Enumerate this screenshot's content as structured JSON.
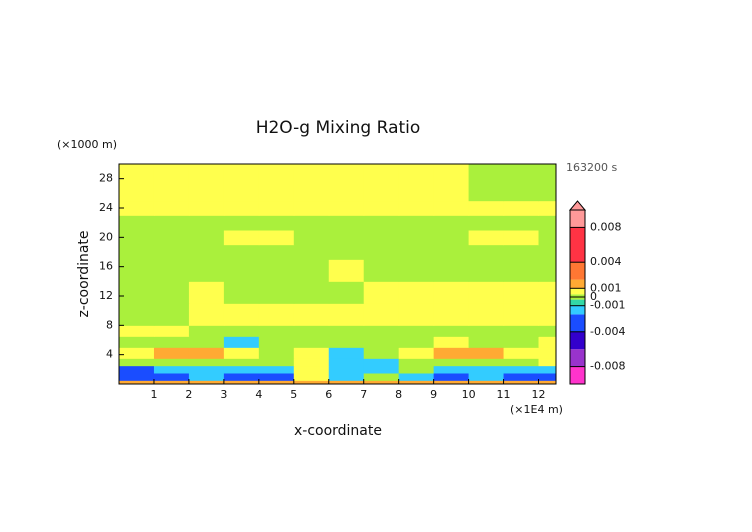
{
  "chart_data": {
    "type": "contour",
    "title": "H2O-g Mixing Ratio",
    "time_label": "163200 s",
    "xlabel": "x-coordinate",
    "ylabel": "z-coordinate",
    "x_unit": "(×1E4 m)",
    "y_unit": "(×1000 m)",
    "xlim": [
      0,
      12.5
    ],
    "ylim": [
      0,
      30
    ],
    "xticks": [
      1,
      2,
      3,
      4,
      5,
      6,
      7,
      8,
      9,
      10,
      11,
      12
    ],
    "yticks": [
      4,
      8,
      12,
      16,
      20,
      24,
      28
    ],
    "x_edges": [
      0,
      1,
      2,
      3,
      4,
      5,
      6,
      7,
      8,
      9,
      10,
      11,
      12,
      12.5
    ],
    "z_edges": [
      0,
      0.5,
      1.5,
      2.5,
      3.5,
      5,
      6.5,
      8,
      11,
      14,
      17,
      19,
      21,
      23,
      25,
      30
    ],
    "values": [
      [
        0.0015,
        0.0015,
        0.0015,
        0.0015,
        0.0015,
        0.0015,
        0.0015,
        0.0015,
        0.0015,
        0.0015,
        0.0015,
        0.0015,
        0.0015
      ],
      [
        -0.003,
        -0.003,
        -0.0015,
        -0.003,
        -0.003,
        0.0006,
        -0.0015,
        0,
        -0.0015,
        -0.003,
        -0.0015,
        -0.003,
        -0.003
      ],
      [
        -0.003,
        -0.0015,
        -0.0015,
        -0.0015,
        -0.0015,
        0.0006,
        -0.0015,
        -0.0015,
        0,
        -0.0015,
        -0.0015,
        -0.0015,
        -0.0015
      ],
      [
        0,
        0,
        0,
        0,
        0,
        0.0006,
        -0.0015,
        -0.0015,
        0,
        0,
        0,
        0,
        0.0006
      ],
      [
        0.0006,
        0.0015,
        0.0015,
        0.0006,
        0,
        0.0006,
        -0.0015,
        0,
        0.0006,
        0.0015,
        0.0015,
        0.0006,
        0.0006
      ],
      [
        0,
        0,
        0,
        -0.0015,
        0,
        0,
        0,
        0,
        0,
        0.0006,
        0,
        0,
        0.0006
      ],
      [
        0.0006,
        0.0006,
        0,
        0,
        0,
        0,
        0,
        0,
        0,
        0,
        0,
        0,
        0
      ],
      [
        0,
        0,
        0.0006,
        0.0006,
        0.0006,
        0.0006,
        0.0006,
        0.0006,
        0.0006,
        0.0006,
        0.0006,
        0.0006,
        0.0006
      ],
      [
        0,
        0,
        0.0006,
        0,
        0,
        0,
        0,
        0.0006,
        0.0006,
        0.0006,
        0.0006,
        0.0006,
        0.0006
      ],
      [
        0,
        0,
        0,
        0,
        0,
        0,
        0.0006,
        0,
        0,
        0,
        0,
        0,
        0
      ],
      [
        0,
        0,
        0,
        0,
        0,
        0,
        0,
        0,
        0,
        0,
        0,
        0,
        0
      ],
      [
        0,
        0,
        0,
        0.0006,
        0.0006,
        0,
        0,
        0,
        0,
        0,
        0.0006,
        0.0006,
        0
      ],
      [
        0,
        0,
        0,
        0,
        0,
        0,
        0,
        0,
        0,
        0,
        0,
        0,
        0
      ],
      [
        0.0006,
        0.0006,
        0.0006,
        0.0006,
        0.0006,
        0.0006,
        0.0006,
        0.0006,
        0.0006,
        0.0006,
        0.0006,
        0.0006,
        0.0006
      ],
      [
        0.0006,
        0.0006,
        0.0006,
        0.0006,
        0.0006,
        0.0006,
        0.0006,
        0.0006,
        0.0006,
        0.0006,
        0,
        0,
        0
      ]
    ],
    "clim": [
      -0.01,
      0.01
    ],
    "cticks": [
      0.008,
      0.004,
      0.001,
      0,
      -0.001,
      -0.004,
      -0.008
    ],
    "colormap": [
      {
        "value": -0.01,
        "color": "#ff33cc"
      },
      {
        "value": -0.008,
        "color": "#9933cc"
      },
      {
        "value": -0.006,
        "color": "#3300cc"
      },
      {
        "value": -0.004,
        "color": "#1a4dff"
      },
      {
        "value": -0.002,
        "color": "#33ccff"
      },
      {
        "value": -0.001,
        "color": "#33d9a6"
      },
      {
        "value": -0.0003,
        "color": "#aaf03c"
      },
      {
        "value": 0.0003,
        "color": "#ffff4d"
      },
      {
        "value": 0.001,
        "color": "#ffaa33"
      },
      {
        "value": 0.002,
        "color": "#ff7733"
      },
      {
        "value": 0.004,
        "color": "#ff3344"
      },
      {
        "value": 0.008,
        "color": "#ff9999"
      }
    ]
  }
}
